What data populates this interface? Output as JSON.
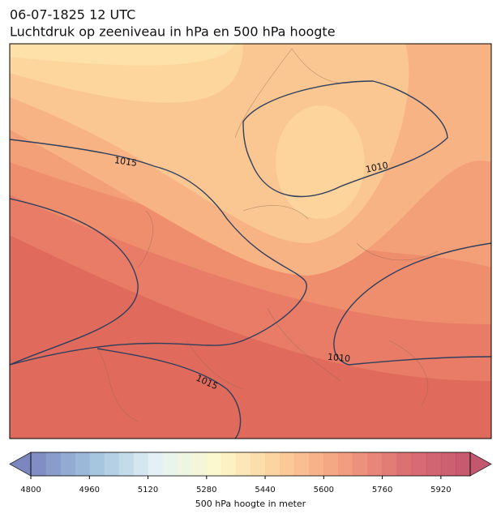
{
  "title": "06-07-1825 12 UTC",
  "subtitle": "Luchtdruk op zeeniveau in hPa en 500 hPa hoogte",
  "isobar_labels": [
    1015,
    1010,
    1010,
    1015
  ],
  "colorbar": {
    "label": "500 hPa hoogte in meter",
    "lim": [
      4800,
      6000
    ],
    "step": 40,
    "ticks": [
      4800,
      4960,
      5120,
      5280,
      5440,
      5600,
      5760,
      5920
    ],
    "colormap": [
      "#6672b5",
      "#92b8d8",
      "#dff0f4",
      "#fcf7c2",
      "#fbc488",
      "#f08d68",
      "#d5555a",
      "#b93a55"
    ],
    "extend": "both"
  }
}
